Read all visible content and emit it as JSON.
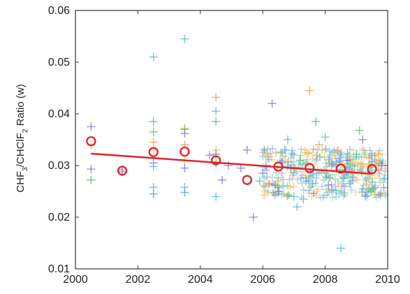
{
  "chart_data": {
    "type": "scatter",
    "ylabel_parts": [
      "CHF",
      "3",
      "/CHClF",
      "2",
      " Ratio (w)"
    ],
    "xlim": [
      2000,
      2010
    ],
    "ylim": [
      0.01,
      0.06
    ],
    "xticks": [
      2000,
      2002,
      2004,
      2006,
      2008,
      2010
    ],
    "yticks": [
      0.01,
      0.02,
      0.03,
      0.04,
      0.05,
      0.06
    ],
    "ytick_labels": [
      "0.01",
      "0.02",
      "0.03",
      "0.04",
      "0.05",
      "0.06"
    ],
    "grid": false,
    "annual_means": {
      "marker": "open-circle",
      "color": "#e0242a",
      "x": [
        2000.5,
        2001.5,
        2002.5,
        2003.5,
        2004.5,
        2005.5,
        2006.5,
        2007.5,
        2008.5,
        2009.5
      ],
      "y": [
        0.0347,
        0.029,
        0.0326,
        0.0327,
        0.031,
        0.0272,
        0.0298,
        0.0295,
        0.0294,
        0.0293
      ]
    },
    "trend_line": {
      "color": "#e0242a",
      "x": [
        2000.5,
        2009.5
      ],
      "y": [
        0.0323,
        0.0284
      ]
    },
    "scatter_points": {
      "marker": "plus",
      "colors": [
        "#5fb8e0",
        "#7a7fd0",
        "#58c27a",
        "#f2a05a",
        "#e6c84a",
        "#4aa8c8"
      ],
      "points": [
        [
          2000.5,
          0.0375,
          1
        ],
        [
          2000.5,
          0.0293,
          1
        ],
        [
          2000.5,
          0.0272,
          2
        ],
        [
          2000.5,
          0.034,
          3
        ],
        [
          2001.5,
          0.0292,
          0
        ],
        [
          2001.5,
          0.0288,
          1
        ],
        [
          2002.5,
          0.051,
          0
        ],
        [
          2002.5,
          0.0385,
          2
        ],
        [
          2002.5,
          0.0365,
          2
        ],
        [
          2002.5,
          0.0345,
          3
        ],
        [
          2002.5,
          0.033,
          4
        ],
        [
          2002.5,
          0.0305,
          1
        ],
        [
          2002.5,
          0.0298,
          0
        ],
        [
          2002.5,
          0.0258,
          0
        ],
        [
          2002.5,
          0.0245,
          5
        ],
        [
          2003.5,
          0.0545,
          0
        ],
        [
          2003.5,
          0.0372,
          4
        ],
        [
          2003.5,
          0.037,
          2
        ],
        [
          2003.5,
          0.0362,
          1
        ],
        [
          2003.5,
          0.034,
          3
        ],
        [
          2003.5,
          0.031,
          4
        ],
        [
          2003.5,
          0.0295,
          1
        ],
        [
          2003.5,
          0.0258,
          0
        ],
        [
          2003.5,
          0.0248,
          5
        ],
        [
          2004.5,
          0.0432,
          3
        ],
        [
          2004.5,
          0.0405,
          0
        ],
        [
          2004.5,
          0.0385,
          2
        ],
        [
          2004.5,
          0.033,
          4
        ],
        [
          2004.5,
          0.0322,
          1
        ],
        [
          2004.5,
          0.0305,
          2
        ],
        [
          2004.5,
          0.024,
          0
        ],
        [
          2004.3,
          0.032,
          1
        ],
        [
          2004.7,
          0.0272,
          1
        ],
        [
          2004.9,
          0.03,
          1
        ],
        [
          2005.3,
          0.0295,
          1
        ],
        [
          2005.5,
          0.033,
          1
        ],
        [
          2005.7,
          0.02,
          1
        ],
        [
          2005.9,
          0.027,
          0
        ],
        [
          2006.0,
          0.0285,
          1
        ],
        [
          2006.1,
          0.03,
          1
        ],
        [
          2006.3,
          0.042,
          1
        ],
        [
          2006.4,
          0.0262,
          1
        ],
        [
          2006.5,
          0.025,
          1
        ],
        [
          2006.6,
          0.0305,
          5
        ],
        [
          2006.7,
          0.033,
          0
        ],
        [
          2006.8,
          0.035,
          0
        ],
        [
          2006.9,
          0.0295,
          1
        ],
        [
          2007.0,
          0.024,
          0
        ],
        [
          2007.1,
          0.022,
          0
        ],
        [
          2007.2,
          0.031,
          2
        ],
        [
          2007.3,
          0.0235,
          0
        ],
        [
          2007.4,
          0.0325,
          4
        ],
        [
          2007.5,
          0.0445,
          3
        ],
        [
          2007.6,
          0.0265,
          0
        ],
        [
          2007.7,
          0.0385,
          2
        ],
        [
          2007.8,
          0.034,
          3
        ],
        [
          2007.9,
          0.033,
          4
        ],
        [
          2008.0,
          0.0355,
          0
        ],
        [
          2008.1,
          0.0262,
          1
        ],
        [
          2008.2,
          0.03,
          0
        ],
        [
          2008.3,
          0.032,
          4
        ],
        [
          2008.4,
          0.0328,
          3
        ],
        [
          2008.5,
          0.014,
          0
        ],
        [
          2008.6,
          0.0275,
          5
        ],
        [
          2008.7,
          0.031,
          1
        ],
        [
          2008.8,
          0.0265,
          0
        ],
        [
          2008.9,
          0.0305,
          4
        ],
        [
          2009.0,
          0.0322,
          2
        ],
        [
          2009.1,
          0.0368,
          2
        ],
        [
          2009.2,
          0.035,
          1
        ],
        [
          2009.3,
          0.024,
          0
        ],
        [
          2009.4,
          0.0302,
          4
        ],
        [
          2009.5,
          0.0268,
          0
        ],
        [
          2009.6,
          0.0258,
          0
        ],
        [
          2009.7,
          0.0322,
          3
        ],
        [
          2009.8,
          0.03,
          1
        ],
        [
          2009.9,
          0.0275,
          0
        ]
      ]
    }
  }
}
